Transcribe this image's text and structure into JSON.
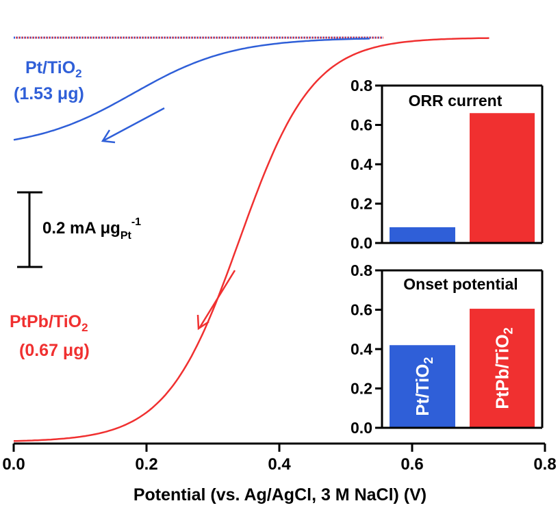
{
  "chart_data": [
    {
      "type": "line",
      "xlabel": "Potential (vs. Ag/AgCl, 3 M NaCl) (V)",
      "xlim": [
        0,
        0.8
      ],
      "xticks": [
        "0.0",
        "0.2",
        "0.4",
        "0.6",
        "0.8"
      ],
      "series": [
        {
          "name": "Pt/TiO2",
          "label_line1": "Pt/TiO",
          "label_sub": "2",
          "label_line2": "(1.53 μg)",
          "color": "#2f5fd8",
          "onset_V": 0.42,
          "limit_current_rel": -1.0
        },
        {
          "name": "PtPb/TiO2",
          "label_line1": "PtPb/TiO",
          "label_sub": "2",
          "label_line2": "(0.67 μg)",
          "color": "#f03030",
          "onset_V": 0.6,
          "limit_current_rel": -3.8
        }
      ],
      "scale_bar": {
        "value": 0.2,
        "text_main": "0.2 mA μg",
        "text_sub": "Pt",
        "text_sup": "-1"
      }
    },
    {
      "type": "bar",
      "title": "ORR current",
      "categories": [
        "Pt/TiO2",
        "PtPb/TiO2"
      ],
      "values": [
        0.08,
        0.66
      ],
      "ylim": [
        0,
        0.8
      ],
      "yticks": [
        "0.0",
        "0.2",
        "0.4",
        "0.6",
        "0.8"
      ]
    },
    {
      "type": "bar",
      "title": "Onset potential",
      "categories": [
        "Pt/TiO2",
        "PtPb/TiO2"
      ],
      "bar_label_main": [
        "Pt/TiO",
        "PtPb/TiO"
      ],
      "bar_label_sub": [
        "2",
        "2"
      ],
      "values": [
        0.42,
        0.605
      ],
      "ylim": [
        0,
        0.8
      ],
      "yticks": [
        "0.0",
        "0.2",
        "0.4",
        "0.6",
        "0.8"
      ]
    }
  ],
  "colors": {
    "blue": "#2f5fd8",
    "red": "#f03030",
    "axis": "#000000"
  }
}
